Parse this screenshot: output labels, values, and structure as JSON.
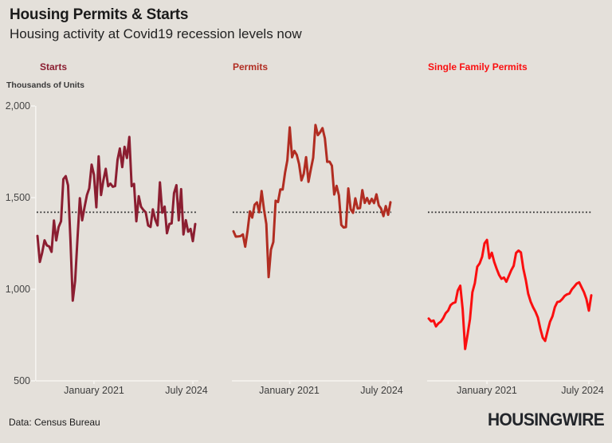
{
  "header": {
    "title": "Housing Permits & Starts",
    "subtitle": "Housing activity at Covid19 recession levels now"
  },
  "y_axis": {
    "label": "Thousands of Units",
    "tick_labels": [
      "2,000",
      "1,500",
      "1,000",
      "500"
    ]
  },
  "footer": {
    "source": "Data: Census Bureau",
    "logo": "HOUSINGWIRE"
  },
  "colors": {
    "background": "#e4e0da",
    "axis": "#f6f4f0",
    "ref_line": "#2e2e2e",
    "starts_line": "#8b1e31",
    "permits_line": "#b12d22",
    "single_family_line": "#fa0f10"
  },
  "chart_data": [
    {
      "type": "line",
      "title": "Starts",
      "color": "#8b1e31",
      "line_width": 3,
      "show_y_axis": true,
      "ylim": [
        500,
        2000
      ],
      "y_ticks": [
        2000,
        1500,
        1000,
        500
      ],
      "ref_line": 1420,
      "x_ticks": [
        {
          "index": 24,
          "label": "January 2021"
        },
        {
          "index": 66,
          "label": "July 2024"
        }
      ],
      "values": [
        1291,
        1149,
        1199,
        1267,
        1239,
        1233,
        1204,
        1375,
        1266,
        1340,
        1371,
        1601,
        1617,
        1567,
        1269,
        938,
        1046,
        1273,
        1497,
        1376,
        1448,
        1514,
        1551,
        1680,
        1625,
        1447,
        1725,
        1514,
        1594,
        1657,
        1562,
        1576,
        1559,
        1563,
        1706,
        1768,
        1666,
        1777,
        1716,
        1831,
        1562,
        1575,
        1371,
        1508,
        1450,
        1432,
        1419,
        1348,
        1340,
        1436,
        1380,
        1348,
        1583,
        1418,
        1451,
        1305,
        1356,
        1359,
        1525,
        1568,
        1376,
        1546,
        1299,
        1377,
        1314,
        1329,
        1262,
        1356
      ]
    },
    {
      "type": "line",
      "title": "Permits",
      "color": "#b12d22",
      "line_width": 3,
      "show_y_axis": false,
      "ylim": [
        500,
        2000
      ],
      "y_ticks": [
        2000,
        1500,
        1000,
        500
      ],
      "ref_line": 1420,
      "x_ticks": [
        {
          "index": 24,
          "label": "January 2021"
        },
        {
          "index": 66,
          "label": "July 2024"
        }
      ],
      "values": [
        1316,
        1287,
        1288,
        1290,
        1299,
        1232,
        1317,
        1425,
        1391,
        1461,
        1474,
        1420,
        1536,
        1438,
        1356,
        1066,
        1216,
        1258,
        1483,
        1476,
        1545,
        1544,
        1635,
        1704,
        1883,
        1720,
        1755,
        1733,
        1683,
        1594,
        1630,
        1721,
        1586,
        1653,
        1717,
        1896,
        1841,
        1857,
        1879,
        1823,
        1695,
        1696,
        1674,
        1517,
        1564,
        1512,
        1351,
        1337,
        1339,
        1550,
        1437,
        1417,
        1496,
        1441,
        1443,
        1541,
        1471,
        1498,
        1467,
        1493,
        1470,
        1518,
        1458,
        1440,
        1399,
        1454,
        1406,
        1475
      ]
    },
    {
      "type": "line",
      "title": "Single Family Permits",
      "color": "#fa0f10",
      "line_width": 3,
      "show_y_axis": false,
      "ylim": [
        500,
        2000
      ],
      "y_ticks": [
        2000,
        1500,
        1000,
        500
      ],
      "ref_line": 1420,
      "x_ticks": [
        {
          "index": 24,
          "label": "January 2021"
        },
        {
          "index": 66,
          "label": "July 2024"
        }
      ],
      "values": [
        840,
        825,
        829,
        797,
        814,
        823,
        843,
        869,
        884,
        913,
        924,
        929,
        993,
        1019,
        891,
        674,
        751,
        838,
        983,
        1034,
        1123,
        1141,
        1177,
        1250,
        1269,
        1169,
        1199,
        1149,
        1111,
        1078,
        1057,
        1064,
        1041,
        1072,
        1103,
        1128,
        1198,
        1211,
        1201,
        1113,
        1051,
        976,
        932,
        902,
        877,
        845,
        784,
        735,
        718,
        772,
        822,
        852,
        902,
        930,
        933,
        946,
        963,
        972,
        976,
        999,
        1015,
        1031,
        1038,
        1011,
        983,
        946,
        883,
        967
      ]
    }
  ]
}
